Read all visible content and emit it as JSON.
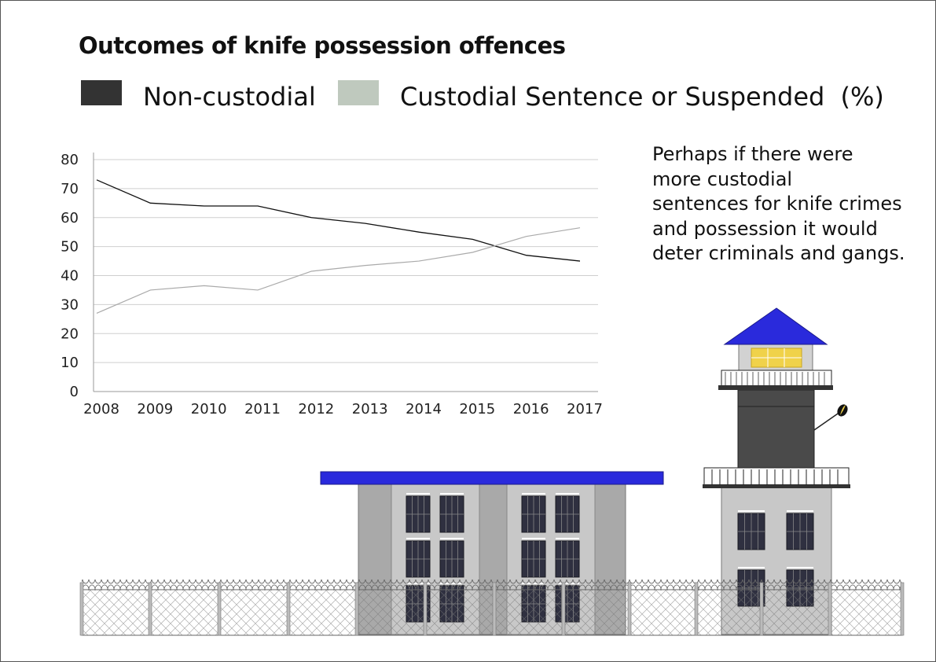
{
  "chart_data": {
    "type": "line",
    "title": "Outcomes of knife possession offences",
    "x": [
      "2008",
      "2009",
      "2010",
      "2011",
      "2012",
      "2013",
      "2014",
      "2015",
      "2016",
      "2017"
    ],
    "series": [
      {
        "name": "Non-custodial",
        "color": "#111111",
        "swatch_color": "#333333",
        "values": [
          73,
          65,
          64,
          64,
          60,
          58,
          55,
          52.5,
          47,
          45
        ]
      },
      {
        "name": "Custodial Sentence or Suspended",
        "color": "#aaaaaa",
        "swatch_color": "#bfc9be",
        "values": [
          27,
          35,
          36.5,
          35,
          41.5,
          43.5,
          45,
          48,
          53.5,
          56.5
        ]
      }
    ],
    "legend_suffix": "(%)",
    "ylim": [
      0,
      80
    ],
    "yticks": [
      "0",
      "10",
      "20",
      "30",
      "40",
      "50",
      "60",
      "70",
      "80"
    ],
    "grid": true,
    "legend": "top"
  },
  "annotation": {
    "lines": [
      "Perhaps if there were",
      "more custodial",
      "sentences for knife crimes",
      "and possession it would",
      "deter criminals and gangs."
    ]
  },
  "illustration": {
    "icons": [
      "prison-building-icon",
      "watchtower-icon",
      "searchlight-icon",
      "razor-wire-fence-icon"
    ],
    "colors": {
      "roof": "#2a2adc",
      "lamp": "#f0d24a",
      "building": "#c8c8c8",
      "window": "#2f3040"
    }
  }
}
